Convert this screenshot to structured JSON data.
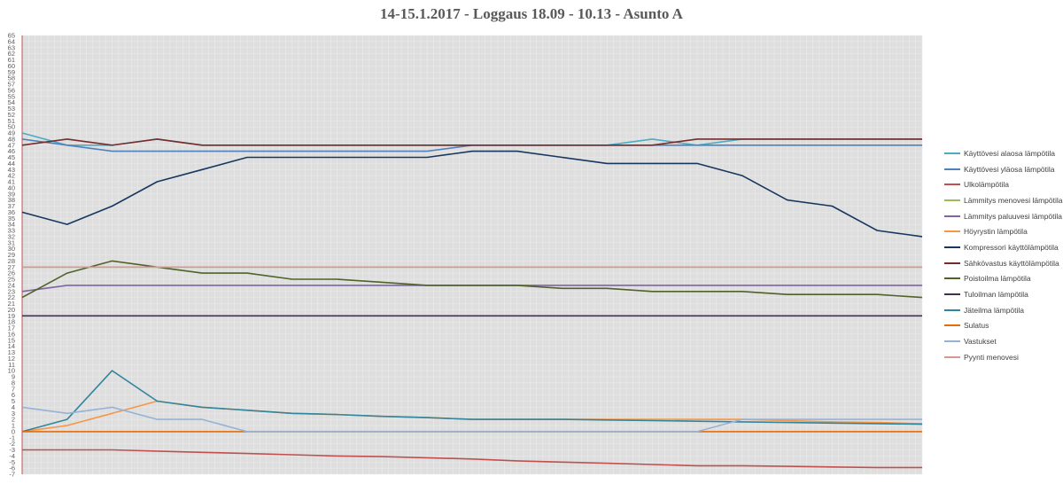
{
  "chart_data": {
    "type": "line",
    "title": "14-15.1.2017 - Loggaus 18.09 - 10.13 - Asunto A",
    "xlabel": "",
    "ylabel": "",
    "ylim": [
      -7,
      65
    ],
    "y_ticks": [
      "-7",
      "-6",
      "-5",
      "-4",
      "-3",
      "-2",
      "-1",
      "0",
      "1",
      "2",
      "3",
      "4",
      "5",
      "6",
      "7",
      "8",
      "9",
      "10",
      "11",
      "12",
      "13",
      "14",
      "15",
      "16",
      "17",
      "18",
      "19",
      "20",
      "21",
      "22",
      "23",
      "24",
      "25",
      "26",
      "27",
      "28",
      "29",
      "30",
      "31",
      "32",
      "33",
      "34",
      "35",
      "36",
      "37",
      "38",
      "39",
      "40",
      "41",
      "42",
      "43",
      "44",
      "45",
      "46",
      "47",
      "48",
      "49",
      "50",
      "51",
      "52",
      "53",
      "54",
      "55",
      "56",
      "57",
      "58",
      "59",
      "60",
      "61",
      "62",
      "63",
      "64",
      "65"
    ],
    "x": [
      0,
      0.05,
      0.1,
      0.15,
      0.2,
      0.25,
      0.3,
      0.35,
      0.4,
      0.45,
      0.5,
      0.55,
      0.6,
      0.65,
      0.7,
      0.75,
      0.8,
      0.85,
      0.9,
      0.95,
      1.0
    ],
    "grid": true,
    "legend_position": "right",
    "series": [
      {
        "name": "Käyttövesi alaosa lämpötila",
        "color": "#4bacc6",
        "values": [
          49,
          47,
          47,
          48,
          47,
          47,
          47,
          47,
          47,
          47,
          47,
          47,
          47,
          47,
          48,
          47,
          48,
          48,
          48,
          48,
          48
        ]
      },
      {
        "name": "Käyttövesi yläosa lämpötila",
        "color": "#4f81bd",
        "values": [
          48,
          47,
          46,
          46,
          46,
          46,
          46,
          46,
          46,
          46,
          47,
          47,
          47,
          47,
          47,
          47,
          47,
          47,
          47,
          47,
          47
        ]
      },
      {
        "name": "Ulkolämpötila",
        "color": "#c0504d",
        "values": [
          -3,
          -3,
          -3,
          -3.2,
          -3.4,
          -3.6,
          -3.8,
          -4,
          -4.1,
          -4.3,
          -4.5,
          -4.8,
          -5,
          -5.2,
          -5.4,
          -5.6,
          -5.6,
          -5.7,
          -5.8,
          -5.9,
          -5.9
        ]
      },
      {
        "name": "Lämmitys menovesi lämpötila",
        "color": "#9bbb59",
        "values": [
          27,
          27,
          27,
          27,
          27,
          27,
          27,
          27,
          27,
          27,
          27,
          27,
          27,
          27,
          27,
          27,
          27,
          27,
          27,
          27,
          27
        ]
      },
      {
        "name": "Lämmitys paluuvesi lämpötila",
        "color": "#8064a2",
        "values": [
          23,
          24,
          24,
          24,
          24,
          24,
          24,
          24,
          24,
          24,
          24,
          24,
          24,
          24,
          24,
          24,
          24,
          24,
          24,
          24,
          24
        ]
      },
      {
        "name": "Höyrystin lämpötila",
        "color": "#f79646",
        "values": [
          0,
          1,
          3,
          5,
          4,
          3.5,
          3,
          2.8,
          2.5,
          2.3,
          2,
          2,
          2,
          2,
          2,
          2,
          2,
          1.8,
          1.6,
          1.5,
          1.3
        ]
      },
      {
        "name": "Kompressori käyttölämpötila",
        "color": "#17375e",
        "values": [
          36,
          34,
          37,
          41,
          43,
          45,
          45,
          45,
          45,
          45,
          46,
          46,
          45,
          44,
          44,
          44,
          42,
          38,
          37,
          33,
          32
        ]
      },
      {
        "name": "Sähkövastus käyttölämpötila",
        "color": "#772c2a",
        "values": [
          47,
          48,
          47,
          48,
          47,
          47,
          47,
          47,
          47,
          47,
          47,
          47,
          47,
          47,
          47,
          48,
          48,
          48,
          48,
          48,
          48
        ]
      },
      {
        "name": "Poistoilma lämpötila",
        "color": "#4f6228",
        "values": [
          22,
          26,
          28,
          27,
          26,
          26,
          25,
          25,
          24.5,
          24,
          24,
          24,
          23.5,
          23.5,
          23,
          23,
          23,
          22.5,
          22.5,
          22.5,
          22
        ]
      },
      {
        "name": "Tuloilman lämpötila",
        "color": "#403151",
        "values": [
          19,
          19,
          19,
          19,
          19,
          19,
          19,
          19,
          19,
          19,
          19,
          19,
          19,
          19,
          19,
          19,
          19,
          19,
          19,
          19,
          19
        ]
      },
      {
        "name": "Jäteilma lämpötila",
        "color": "#31859c",
        "values": [
          0,
          2,
          10,
          5,
          4,
          3.5,
          3,
          2.8,
          2.5,
          2.3,
          2,
          2,
          2,
          1.9,
          1.8,
          1.7,
          1.6,
          1.5,
          1.4,
          1.3,
          1.2
        ]
      },
      {
        "name": "Sulatus",
        "color": "#e46c0a",
        "values": [
          0,
          0,
          0,
          0,
          0,
          0,
          0,
          0,
          0,
          0,
          0,
          0,
          0,
          0,
          0,
          0,
          0,
          0,
          0,
          0,
          0
        ]
      },
      {
        "name": "Vastukset",
        "color": "#95b3d7",
        "values": [
          4,
          3,
          4,
          2,
          2,
          0,
          0,
          0,
          0,
          0,
          0,
          0,
          0,
          0,
          0,
          0,
          2,
          2,
          2,
          2,
          2
        ]
      },
      {
        "name": "Pyynti menovesi",
        "color": "#d99694",
        "values": [
          27,
          27,
          27,
          27,
          27,
          27,
          27,
          27,
          27,
          27,
          27,
          27,
          27,
          27,
          27,
          27,
          27,
          27,
          27,
          27,
          27
        ]
      }
    ]
  }
}
